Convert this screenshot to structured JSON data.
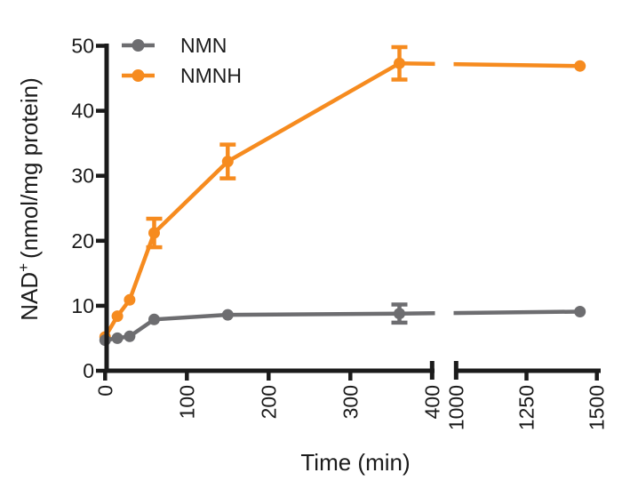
{
  "figure": {
    "background_color": "#ffffff",
    "axis_color": "#1b1b1b"
  },
  "chart_data": {
    "type": "line",
    "title": "",
    "xlabel": "Time (min)",
    "ylabel": "NAD+ (nmol/mg protein)",
    "ylabel_base": "NAD",
    "ylabel_sup": "+",
    "ylabel_rest_text": "(nmol/mg protein)",
    "x": [
      0,
      15,
      30,
      60,
      150,
      360,
      1440
    ],
    "series": [
      {
        "name": "NMN",
        "color": "#6d6d70",
        "marker": "circle",
        "values": [
          4.7,
          5.0,
          5.3,
          7.9,
          8.6,
          8.8,
          9.1
        ],
        "errors": [
          0,
          0,
          0,
          0,
          0,
          1.4,
          0
        ]
      },
      {
        "name": "NMNH",
        "color": "#f68b1f",
        "marker": "circle",
        "values": [
          5.2,
          8.4,
          10.9,
          21.2,
          32.2,
          47.3,
          46.9
        ],
        "errors": [
          0,
          0,
          0,
          2.2,
          2.6,
          2.5,
          0
        ]
      }
    ],
    "ylim": [
      0,
      50
    ],
    "yticks": [
      0,
      10,
      20,
      30,
      40,
      50
    ],
    "x_axis": {
      "segments": [
        {
          "range": [
            0,
            400
          ],
          "labeled_ticks": [
            0,
            100,
            200,
            300,
            400
          ]
        },
        {
          "range": [
            1000,
            1500
          ],
          "labeled_ticks": [
            1000,
            1250,
            1500
          ]
        }
      ],
      "break_between": [
        400,
        1000
      ],
      "tick_label_rotation_deg": -90
    },
    "legend": {
      "position": "top-left-inside",
      "entries": [
        "NMN",
        "NMNH"
      ]
    },
    "grid": false,
    "error_bars": "plus-minus with caps"
  }
}
